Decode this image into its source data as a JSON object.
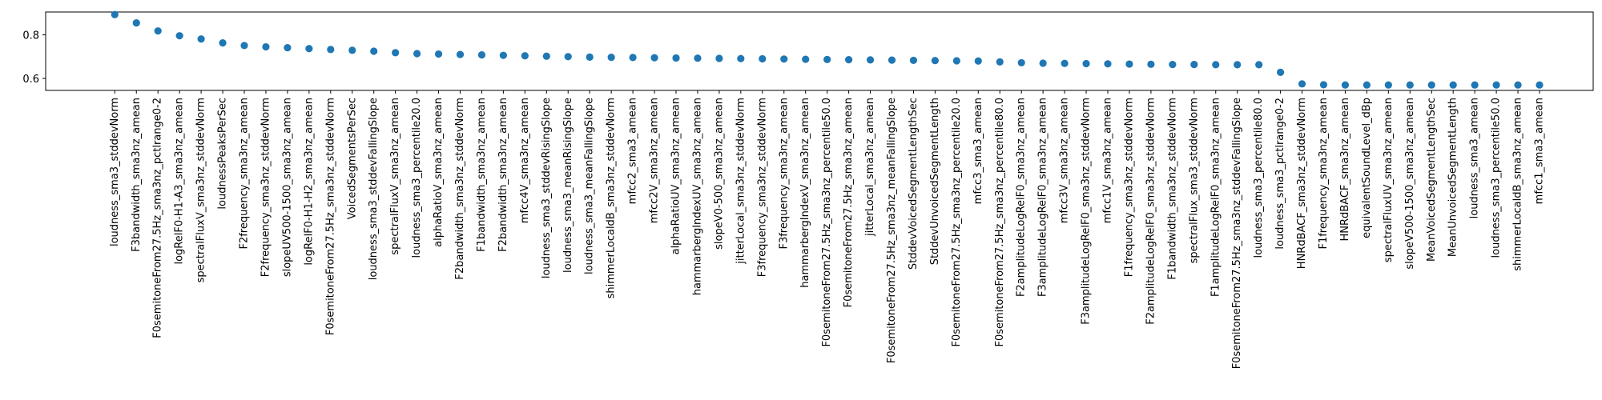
{
  "chart_data": {
    "type": "scatter",
    "title": "",
    "xlabel": "",
    "ylabel": "",
    "ylim": [
      0.545,
      0.905
    ],
    "yticks": [
      "0.6",
      "0.8"
    ],
    "grid": false,
    "marker_color": "#1f77b4",
    "categories": [
      "loudness_sma3_stddevNorm",
      "F3bandwidth_sma3nz_amean",
      "F0semitoneFrom27.5Hz_sma3nz_pctlrange0-2",
      "logRelF0-H1-A3_sma3nz_amean",
      "spectralFluxV_sma3nz_stddevNorm",
      "loudnessPeaksPerSec",
      "F2frequency_sma3nz_amean",
      "F2frequency_sma3nz_stddevNorm",
      "slopeUV500-1500_sma3nz_amean",
      "logRelF0-H1-H2_sma3nz_amean",
      "F0semitoneFrom27.5Hz_sma3nz_stddevNorm",
      "VoicedSegmentsPerSec",
      "loudness_sma3_stddevFallingSlope",
      "spectralFluxV_sma3nz_amean",
      "loudness_sma3_percentile20.0",
      "alphaRatioV_sma3nz_amean",
      "F2bandwidth_sma3nz_stddevNorm",
      "F1bandwidth_sma3nz_amean",
      "F2bandwidth_sma3nz_amean",
      "mfcc4V_sma3nz_amean",
      "loudness_sma3_stddevRisingSlope",
      "loudness_sma3_meanRisingSlope",
      "loudness_sma3_meanFallingSlope",
      "shimmerLocaldB_sma3nz_stddevNorm",
      "mfcc2_sma3_amean",
      "mfcc2V_sma3nz_amean",
      "alphaRatioUV_sma3nz_amean",
      "hammarbergIndexUV_sma3nz_amean",
      "slopeV0-500_sma3nz_amean",
      "jitterLocal_sma3nz_stddevNorm",
      "F3frequency_sma3nz_stddevNorm",
      "F3frequency_sma3nz_amean",
      "hammarbergIndexV_sma3nz_amean",
      "F0semitoneFrom27.5Hz_sma3nz_percentile50.0",
      "F0semitoneFrom27.5Hz_sma3nz_amean",
      "jitterLocal_sma3nz_amean",
      "F0semitoneFrom27.5Hz_sma3nz_meanFallingSlope",
      "StddevVoicedSegmentLengthSec",
      "StddevUnvoicedSegmentLength",
      "F0semitoneFrom27.5Hz_sma3nz_percentile20.0",
      "mfcc3_sma3_amean",
      "F0semitoneFrom27.5Hz_sma3nz_percentile80.0",
      "F2amplitudeLogRelF0_sma3nz_amean",
      "F3amplitudeLogRelF0_sma3nz_amean",
      "mfcc3V_sma3nz_amean",
      "F3amplitudeLogRelF0_sma3nz_stddevNorm",
      "mfcc1V_sma3nz_amean",
      "F1frequency_sma3nz_stddevNorm",
      "F2amplitudeLogRelF0_sma3nz_stddevNorm",
      "F1bandwidth_sma3nz_stddevNorm",
      "spectralFlux_sma3_stddevNorm",
      "F1amplitudeLogRelF0_sma3nz_amean",
      "F0semitoneFrom27.5Hz_sma3nz_stddevFallingSlope",
      "loudness_sma3_percentile80.0",
      "loudness_sma3_pctlrange0-2",
      "HNRdBACF_sma3nz_stddevNorm",
      "F1frequency_sma3nz_amean",
      "HNRdBACF_sma3nz_amean",
      "equivalentSoundLevel_dBp",
      "spectralFluxUV_sma3nz_amean",
      "slopeV500-1500_sma3nz_amean",
      "MeanVoicedSegmentLengthSec",
      "MeanUnvoicedSegmentLength",
      "loudness_sma3_amean",
      "loudness_sma3_percentile50.0",
      "shimmerLocaldB_sma3nz_amean",
      "mfcc1_sma3_amean"
    ],
    "values": [
      0.893,
      0.855,
      0.818,
      0.796,
      0.781,
      0.763,
      0.751,
      0.745,
      0.741,
      0.737,
      0.733,
      0.729,
      0.725,
      0.718,
      0.714,
      0.712,
      0.71,
      0.708,
      0.706,
      0.704,
      0.702,
      0.7,
      0.698,
      0.697,
      0.696,
      0.695,
      0.694,
      0.693,
      0.692,
      0.691,
      0.69,
      0.689,
      0.688,
      0.687,
      0.686,
      0.685,
      0.684,
      0.683,
      0.682,
      0.681,
      0.68,
      0.676,
      0.672,
      0.67,
      0.669,
      0.668,
      0.667,
      0.666,
      0.665,
      0.664,
      0.664,
      0.663,
      0.663,
      0.663,
      0.628,
      0.575,
      0.571,
      0.57,
      0.57,
      0.57,
      0.57,
      0.57,
      0.57,
      0.57,
      0.57,
      0.57,
      0.57
    ]
  }
}
